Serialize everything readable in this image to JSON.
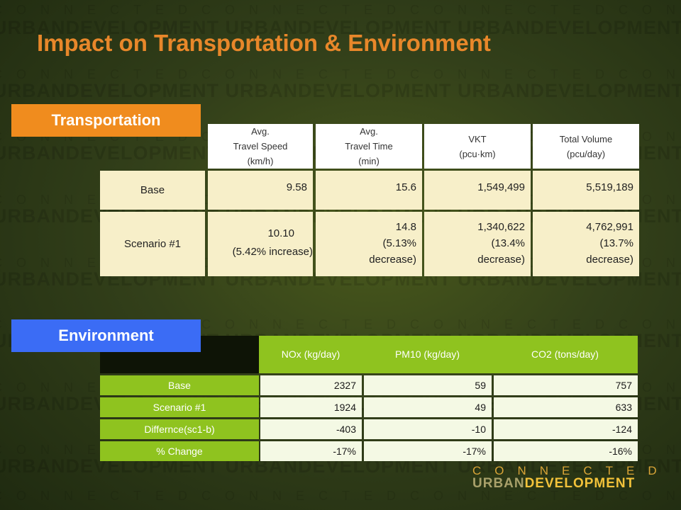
{
  "title": "Impact on Transportation & Environment",
  "colors": {
    "title": "#e8872a",
    "transportation_label_bg": "#f08c1e",
    "environment_label_bg": "#3b6cf5",
    "env_header_bg": "#8fc31f",
    "transport_cell_bg": "#f7efc9",
    "background": "#33401a"
  },
  "transportation": {
    "label": "Transportation",
    "headers": [
      {
        "lines": [
          "Avg.",
          "Travel Speed",
          "(km/h)"
        ]
      },
      {
        "lines": [
          "Avg.",
          "Travel Time",
          "(min)"
        ]
      },
      {
        "lines": [
          "VKT",
          "(pcu·km)"
        ]
      },
      {
        "lines": [
          "Total Volume",
          "(pcu/day)"
        ]
      }
    ],
    "rows": [
      {
        "label": "Base",
        "cells": [
          [
            "9.58"
          ],
          [
            "15.6"
          ],
          [
            "1,549,499"
          ],
          [
            "5,519,189"
          ]
        ]
      },
      {
        "label": "Scenario #1",
        "cells": [
          [
            "10.10",
            "(5.42% increase)"
          ],
          [
            "14.8",
            "(5.13%",
            "decrease)"
          ],
          [
            "1,340,622",
            "(13.4%",
            "decrease)"
          ],
          [
            "4,762,991",
            "(13.7%",
            "decrease)"
          ]
        ]
      }
    ]
  },
  "environment": {
    "label": "Environment",
    "headers": [
      "NOx (kg/day)",
      "PM10 (kg/day)",
      "CO2 (tons/day)"
    ],
    "rows": [
      {
        "label": "Base",
        "values": [
          "2327",
          "59",
          "757"
        ]
      },
      {
        "label": "Scenario #1",
        "values": [
          "1924",
          "49",
          "633"
        ]
      },
      {
        "label": "Differnce(sc1-b)",
        "values": [
          "-403",
          "-10",
          "-124"
        ]
      },
      {
        "label": "% Change",
        "values": [
          "-17%",
          "-17%",
          "-16%"
        ]
      }
    ]
  },
  "logo": {
    "top": "CONNECTED",
    "bottom_part1": "URBAN",
    "bottom_part2": "DEVELOPMENT"
  },
  "watermark": {
    "word_row": "URBANDEVELOPMENT URBANDEVELOPMENT URBANDEVELOPMENT URBANDEVELOPMENT",
    "letter_row": "CONNECTEDCONNECTEDCONNECTEDCONNECTED"
  }
}
